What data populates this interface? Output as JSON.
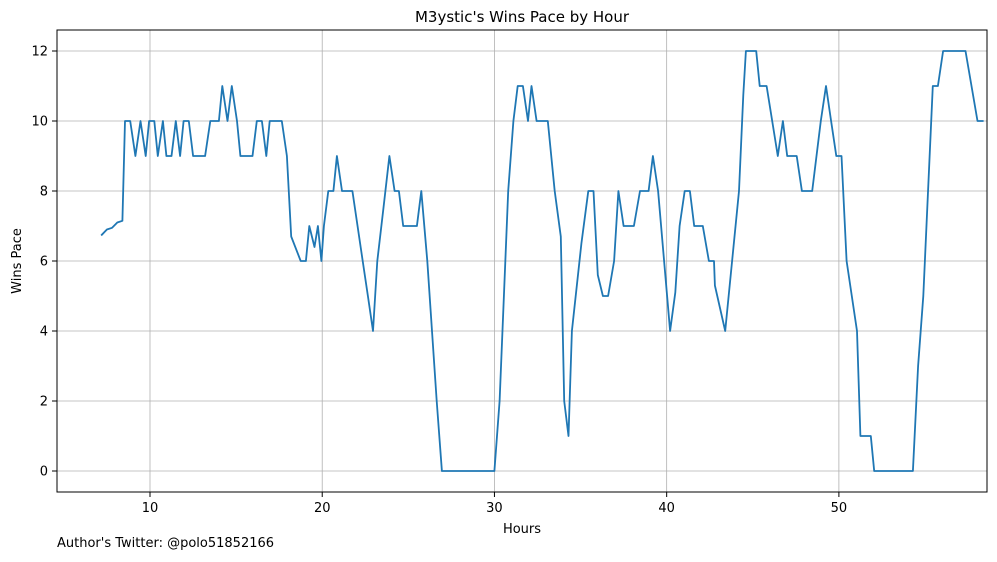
{
  "credit_text": "Author's Twitter: @polo51852166",
  "chart_data": {
    "type": "line",
    "title": "M3ystic's Wins Pace by Hour",
    "xlabel": "Hours",
    "ylabel": "Wins Pace",
    "xlim": [
      4.6,
      58.6
    ],
    "ylim": [
      -0.6,
      12.6
    ],
    "xticks": [
      10,
      20,
      30,
      40,
      50
    ],
    "yticks": [
      0,
      2,
      4,
      6,
      8,
      10,
      12
    ],
    "grid": true,
    "line_color": "#1f77b4",
    "series": [
      {
        "points": [
          [
            7.2,
            6.75
          ],
          [
            7.5,
            6.9
          ],
          [
            7.8,
            6.95
          ],
          [
            8.1,
            7.1
          ],
          [
            8.4,
            7.15
          ],
          [
            8.55,
            10
          ],
          [
            8.85,
            10
          ],
          [
            9.15,
            9
          ],
          [
            9.45,
            10
          ],
          [
            9.75,
            9
          ],
          [
            9.95,
            10
          ],
          [
            10.25,
            10
          ],
          [
            10.45,
            9
          ],
          [
            10.75,
            10
          ],
          [
            10.95,
            9
          ],
          [
            11.25,
            9
          ],
          [
            11.5,
            10
          ],
          [
            11.75,
            9
          ],
          [
            11.95,
            10
          ],
          [
            12.25,
            10
          ],
          [
            12.5,
            9
          ],
          [
            13.2,
            9
          ],
          [
            13.5,
            10
          ],
          [
            14.0,
            10
          ],
          [
            14.2,
            11
          ],
          [
            14.5,
            10
          ],
          [
            14.75,
            11
          ],
          [
            15.05,
            10
          ],
          [
            15.25,
            9
          ],
          [
            15.95,
            9
          ],
          [
            16.2,
            10
          ],
          [
            16.5,
            10
          ],
          [
            16.75,
            9
          ],
          [
            16.95,
            10
          ],
          [
            17.65,
            10
          ],
          [
            17.95,
            9
          ],
          [
            18.2,
            6.7
          ],
          [
            18.75,
            6
          ],
          [
            19.05,
            6
          ],
          [
            19.25,
            7
          ],
          [
            19.55,
            6.4
          ],
          [
            19.75,
            7
          ],
          [
            19.95,
            6
          ],
          [
            20.1,
            7
          ],
          [
            20.35,
            8
          ],
          [
            20.65,
            8
          ],
          [
            20.85,
            9
          ],
          [
            21.15,
            8
          ],
          [
            21.75,
            8
          ],
          [
            22.35,
            6
          ],
          [
            22.65,
            5
          ],
          [
            22.95,
            4
          ],
          [
            23.2,
            6
          ],
          [
            23.55,
            7.5
          ],
          [
            23.9,
            9
          ],
          [
            24.2,
            8
          ],
          [
            24.45,
            8
          ],
          [
            24.7,
            7
          ],
          [
            25.5,
            7
          ],
          [
            25.75,
            8
          ],
          [
            26.1,
            6
          ],
          [
            26.65,
            2
          ],
          [
            26.95,
            0
          ],
          [
            30.0,
            0
          ],
          [
            30.3,
            2
          ],
          [
            30.8,
            8
          ],
          [
            31.1,
            10
          ],
          [
            31.35,
            11
          ],
          [
            31.65,
            11
          ],
          [
            31.95,
            10
          ],
          [
            32.15,
            11
          ],
          [
            32.45,
            10
          ],
          [
            33.1,
            10
          ],
          [
            33.5,
            8
          ],
          [
            33.85,
            6.7
          ],
          [
            34.05,
            2
          ],
          [
            34.3,
            1
          ],
          [
            34.5,
            4
          ],
          [
            35.05,
            6.5
          ],
          [
            35.45,
            8
          ],
          [
            35.75,
            8
          ],
          [
            36.0,
            5.6
          ],
          [
            36.3,
            5
          ],
          [
            36.6,
            5
          ],
          [
            36.95,
            6
          ],
          [
            37.2,
            8
          ],
          [
            37.5,
            7
          ],
          [
            38.1,
            7
          ],
          [
            38.45,
            8
          ],
          [
            38.95,
            8
          ],
          [
            39.2,
            9
          ],
          [
            39.5,
            8
          ],
          [
            39.85,
            6
          ],
          [
            40.2,
            4
          ],
          [
            40.5,
            5.1
          ],
          [
            40.75,
            7
          ],
          [
            41.05,
            8
          ],
          [
            41.35,
            8
          ],
          [
            41.6,
            7
          ],
          [
            42.1,
            7
          ],
          [
            42.45,
            6
          ],
          [
            42.75,
            6
          ],
          [
            42.8,
            5.3
          ],
          [
            43.4,
            4
          ],
          [
            44.2,
            8
          ],
          [
            44.45,
            10.75
          ],
          [
            44.6,
            12
          ],
          [
            45.2,
            12
          ],
          [
            45.4,
            11
          ],
          [
            45.8,
            11
          ],
          [
            46.45,
            9
          ],
          [
            46.75,
            10
          ],
          [
            47.0,
            9
          ],
          [
            47.55,
            9
          ],
          [
            47.85,
            8
          ],
          [
            48.45,
            8
          ],
          [
            48.95,
            10
          ],
          [
            49.25,
            11
          ],
          [
            49.55,
            10
          ],
          [
            49.85,
            9
          ],
          [
            50.15,
            9
          ],
          [
            50.45,
            6
          ],
          [
            51.05,
            4
          ],
          [
            51.25,
            1
          ],
          [
            51.85,
            1
          ],
          [
            52.05,
            0
          ],
          [
            54.3,
            0
          ],
          [
            54.6,
            3
          ],
          [
            54.9,
            5
          ],
          [
            55.45,
            11
          ],
          [
            55.75,
            11
          ],
          [
            56.05,
            12
          ],
          [
            57.35,
            12
          ],
          [
            57.7,
            11
          ],
          [
            58.05,
            10
          ],
          [
            58.35,
            10
          ]
        ]
      }
    ]
  }
}
